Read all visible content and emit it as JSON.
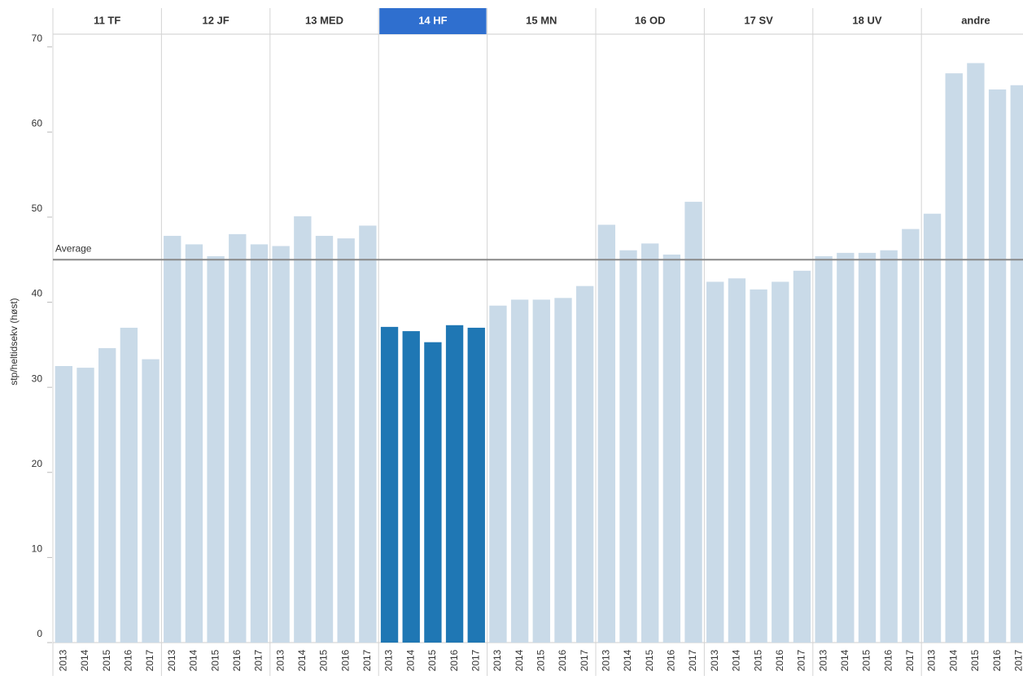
{
  "chart_data": {
    "type": "bar",
    "y_label": "stp/heltidsekv (høst)",
    "ylim": [
      0,
      71.5
    ],
    "yticks": [
      0,
      10,
      20,
      30,
      40,
      50,
      60,
      70
    ],
    "color": "#c9dae8",
    "highlight_color": "#1f77b4",
    "header_highlight_color": "#2f6fcf",
    "highlight_index": 3,
    "average": {
      "label": "Average",
      "value": 45.0
    },
    "groups": [
      {
        "name": "11 TF",
        "categories": [
          "2013",
          "2014",
          "2015",
          "2016",
          "2017"
        ],
        "values": [
          32.5,
          32.3,
          34.6,
          37.0,
          33.3
        ]
      },
      {
        "name": "12 JF",
        "categories": [
          "2013",
          "2014",
          "2015",
          "2016",
          "2017"
        ],
        "values": [
          47.8,
          46.8,
          45.4,
          48.0,
          46.8
        ]
      },
      {
        "name": "13 MED",
        "categories": [
          "2013",
          "2014",
          "2015",
          "2016",
          "2017"
        ],
        "values": [
          46.6,
          50.1,
          47.8,
          47.5,
          49.0
        ]
      },
      {
        "name": "14 HF",
        "categories": [
          "2013",
          "2014",
          "2015",
          "2016",
          "2017"
        ],
        "values": [
          37.1,
          36.6,
          35.3,
          37.3,
          37.0
        ]
      },
      {
        "name": "15 MN",
        "categories": [
          "2013",
          "2014",
          "2015",
          "2016",
          "2017"
        ],
        "values": [
          39.6,
          40.3,
          40.3,
          40.5,
          41.9
        ]
      },
      {
        "name": "16 OD",
        "categories": [
          "2013",
          "2014",
          "2015",
          "2016",
          "2017"
        ],
        "values": [
          49.1,
          46.1,
          46.9,
          45.6,
          51.8
        ]
      },
      {
        "name": "17 SV",
        "categories": [
          "2013",
          "2014",
          "2015",
          "2016",
          "2017"
        ],
        "values": [
          42.4,
          42.8,
          41.5,
          42.4,
          43.7
        ]
      },
      {
        "name": "18 UV",
        "categories": [
          "2013",
          "2014",
          "2015",
          "2016",
          "2017"
        ],
        "values": [
          45.4,
          45.8,
          45.8,
          46.1,
          48.6
        ]
      },
      {
        "name": "andre",
        "categories": [
          "2013",
          "2014",
          "2015",
          "2016",
          "2017"
        ],
        "values": [
          50.4,
          66.9,
          68.1,
          65.0,
          65.5
        ]
      }
    ]
  }
}
